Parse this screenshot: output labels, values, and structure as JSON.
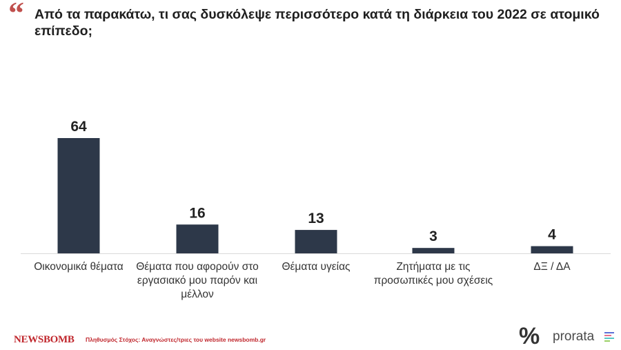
{
  "title": "Από τα παρακάτω, τι σας δυσκόλεψε περισσότερο κατά τη διάρκεια του 2022 σε ατομικό επίπεδο;",
  "quote_glyph": "“",
  "colors": {
    "bar": "#2d3849",
    "accent": "#c0504d",
    "brand": "#c0272d"
  },
  "chart_data": {
    "type": "bar",
    "categories": [
      "Οικονομικά θέματα",
      "Θέματα που αφορούν στο εργασιακό μου παρόν και μέλλον",
      "Θέματα υγείας",
      "Ζητήματα με τις προσωπικές μου σχέσεις",
      "ΔΞ / ΔΑ"
    ],
    "values": [
      64,
      16,
      13,
      3,
      4
    ],
    "value_labels": [
      "64",
      "16",
      "13",
      "3",
      "4"
    ],
    "title": "Από τα παρακάτω, τι σας δυσκόλεψε περισσότερο κατά τη διάρκεια του 2022 σε ατομικό επίπεδο;",
    "ylim": [
      0,
      64
    ],
    "grid": false,
    "legend": "none"
  },
  "footer": {
    "brand": "NEWSBOMB",
    "note": "Πληθυσμός Στόχος: Αναγνώστες/τριες του website newsbomb.gr",
    "percent_logo": "%",
    "prorata": "prorata"
  }
}
